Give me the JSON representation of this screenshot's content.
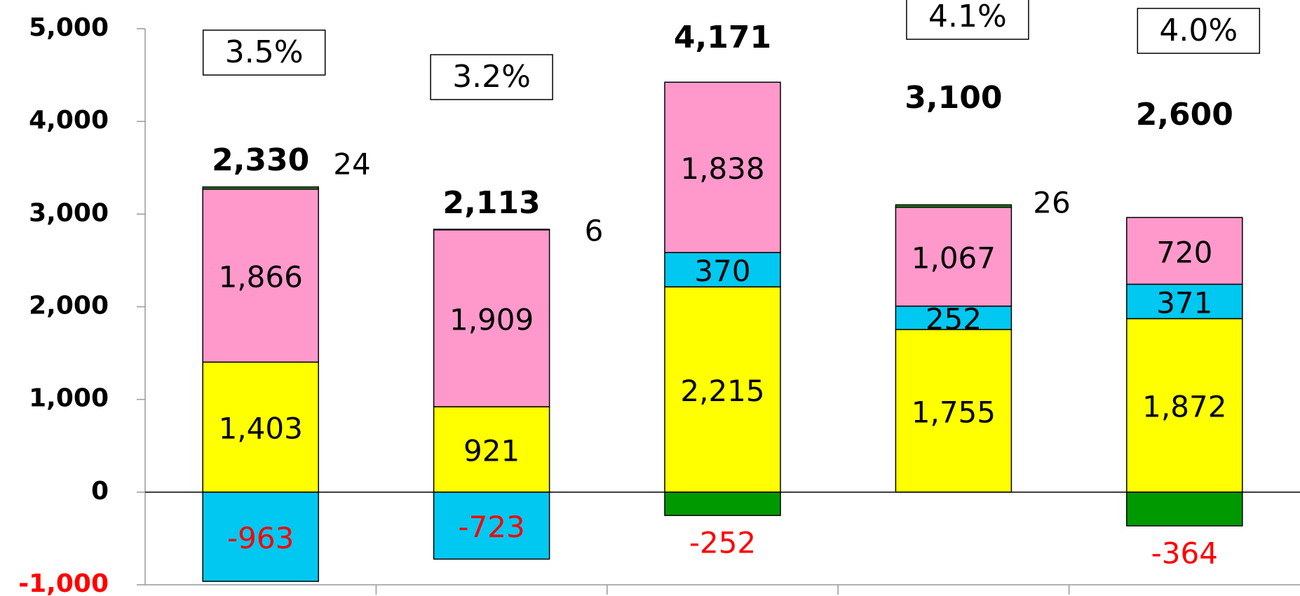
{
  "chart_data": {
    "type": "stacked_bar",
    "categories": [
      null,
      null,
      null,
      null,
      null
    ],
    "series": [
      {
        "color": "#ffff00",
        "values": [
          1403,
          921,
          2215,
          1755,
          1872
        ],
        "value_labels": [
          "1,403",
          "921",
          "2,215",
          "1,755",
          "1,872"
        ]
      },
      {
        "color": "#00c8f0",
        "values": [
          -963,
          -723,
          370,
          252,
          371
        ],
        "value_labels": [
          "-963",
          "-723",
          "370",
          "252",
          "371"
        ]
      },
      {
        "color": "#ff99cc",
        "values": [
          1866,
          1909,
          1838,
          1067,
          720
        ],
        "value_labels": [
          "1,866",
          "1,909",
          "1,838",
          "1,067",
          "720"
        ]
      },
      {
        "color": "#009900",
        "values": [
          24,
          6,
          -252,
          26,
          -364
        ],
        "value_labels": [
          "24",
          "6",
          "-252",
          "26",
          "-364"
        ]
      }
    ],
    "totals": [
      2330,
      2113,
      4171,
      3100,
      2600
    ],
    "totals_labels": [
      "2,330",
      "2,113",
      "4,171",
      "3,100",
      "2,600"
    ],
    "percentages": [
      3.5,
      3.2,
      null,
      4.1,
      4.0
    ],
    "percentages_labels": [
      "3.5%",
      "3.2%",
      null,
      "4.1%",
      "4.0%"
    ],
    "ylim": [
      -1000,
      5000
    ],
    "yticks": [
      {
        "value": -1000,
        "label": "-1,000"
      },
      0,
      {
        "value": 1000,
        "label": "1,000"
      },
      {
        "value": 2000,
        "label": "2,000"
      },
      {
        "value": 3000,
        "label": "3,000"
      },
      {
        "value": 4000,
        "label": "4,000"
      },
      {
        "value": 5000,
        "label": "5,000"
      }
    ]
  }
}
